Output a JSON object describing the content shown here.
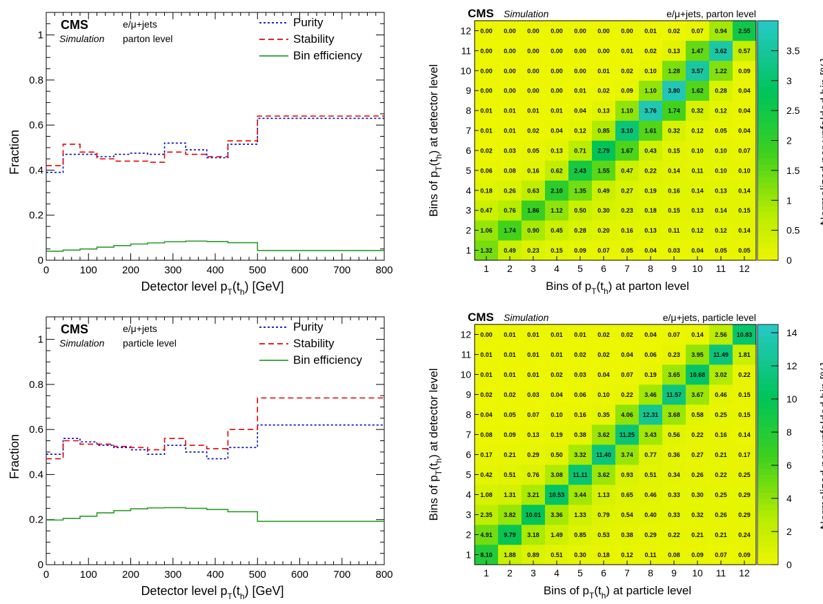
{
  "chart_data": [
    {
      "type": "line",
      "experiment": "CMS",
      "tag": "Simulation",
      "channel": "e/μ+jets",
      "level": "parton level",
      "xlabel_prefix": "Detector level p",
      "xlabel_sub1": "T",
      "xlabel_mid": "(t",
      "xlabel_sub2": "h",
      "xlabel_suffix": ") [GeV]",
      "ylabel": "Fraction",
      "xlim": [
        0,
        800
      ],
      "ylim": [
        0,
        1.1
      ],
      "xticks": [
        "0",
        "100",
        "200",
        "300",
        "400",
        "500",
        "600",
        "700",
        "800"
      ],
      "yticks": [
        "0",
        "0.2",
        "0.4",
        "0.6",
        "0.8",
        "1"
      ],
      "bin_edges": [
        0,
        40,
        80,
        120,
        160,
        200,
        240,
        280,
        330,
        380,
        430,
        500,
        800
      ],
      "legend_position": "top-right",
      "series": [
        {
          "name": "Purity",
          "color": "#0000cc",
          "style": "dotted",
          "values": [
            0.39,
            0.47,
            0.47,
            0.46,
            0.47,
            0.475,
            0.47,
            0.52,
            0.49,
            0.455,
            0.515,
            0.63
          ]
        },
        {
          "name": "Stability",
          "color": "#e00000",
          "style": "dashed",
          "values": [
            0.42,
            0.515,
            0.48,
            0.45,
            0.44,
            0.44,
            0.435,
            0.48,
            0.47,
            0.46,
            0.53,
            0.64
          ]
        },
        {
          "name": "Bin efficiency",
          "color": "#2a9a2a",
          "style": "solid",
          "values": [
            0.04,
            0.045,
            0.05,
            0.058,
            0.065,
            0.072,
            0.077,
            0.082,
            0.085,
            0.083,
            0.078,
            0.043
          ]
        }
      ]
    },
    {
      "type": "heatmap",
      "experiment": "CMS",
      "tag": "Simulation",
      "header": "e/μ+jets, parton level",
      "xlabel_prefix": "Bins of p",
      "xlabel_sub1": "T",
      "xlabel_mid": "(t",
      "xlabel_sub2": "h",
      "xlabel_suffix": ") at parton level",
      "ylabel_prefix": "Bins of p",
      "ylabel_sub1": "T",
      "ylabel_mid": "(t",
      "ylabel_sub2": "h",
      "ylabel_suffix": ") at detector level",
      "zlabel": "Normalized per unfolded bin [%]",
      "zlim": [
        0,
        4.0
      ],
      "zticks": [
        "0",
        "0.5",
        "1",
        "1.5",
        "2",
        "2.5",
        "3",
        "3.5"
      ],
      "zvalues": [
        0,
        0.5,
        1,
        1.5,
        2,
        2.5,
        3,
        3.5
      ],
      "x_bins": [
        "1",
        "2",
        "3",
        "4",
        "5",
        "6",
        "7",
        "8",
        "9",
        "10",
        "11",
        "12"
      ],
      "y_bins": [
        "1",
        "2",
        "3",
        "4",
        "5",
        "6",
        "7",
        "8",
        "9",
        "10",
        "11",
        "12"
      ],
      "cells": [
        [
          "1.32",
          "0.49",
          "0.23",
          "0.15",
          "0.09",
          "0.07",
          "0.05",
          "0.04",
          "0.03",
          "0.04",
          "0.05",
          "0.05"
        ],
        [
          "1.06",
          "1.74",
          "0.90",
          "0.45",
          "0.28",
          "0.20",
          "0.16",
          "0.13",
          "0.11",
          "0.12",
          "0.12",
          "0.14"
        ],
        [
          "0.47",
          "0.76",
          "1.86",
          "1.12",
          "0.50",
          "0.30",
          "0.23",
          "0.18",
          "0.15",
          "0.13",
          "0.14",
          "0.15"
        ],
        [
          "0.18",
          "0.26",
          "0.63",
          "2.10",
          "1.35",
          "0.49",
          "0.27",
          "0.19",
          "0.16",
          "0.14",
          "0.13",
          "0.14"
        ],
        [
          "0.06",
          "0.08",
          "0.16",
          "0.62",
          "2.43",
          "1.55",
          "0.47",
          "0.22",
          "0.14",
          "0.11",
          "0.10",
          "0.10"
        ],
        [
          "0.02",
          "0.03",
          "0.05",
          "0.13",
          "0.71",
          "2.79",
          "1.67",
          "0.43",
          "0.15",
          "0.10",
          "0.10",
          "0.07"
        ],
        [
          "0.01",
          "0.01",
          "0.02",
          "0.04",
          "0.12",
          "0.85",
          "3.10",
          "1.61",
          "0.32",
          "0.12",
          "0.05",
          "0.04"
        ],
        [
          "0.01",
          "0.01",
          "0.01",
          "0.01",
          "0.04",
          "0.13",
          "1.10",
          "3.76",
          "1.74",
          "0.32",
          "0.12",
          "0.04"
        ],
        [
          "0.00",
          "0.00",
          "0.00",
          "0.00",
          "0.01",
          "0.02",
          "0.09",
          "1.10",
          "3.80",
          "1.62",
          "0.28",
          "0.04"
        ],
        [
          "0.00",
          "0.00",
          "0.00",
          "0.00",
          "0.00",
          "0.01",
          "0.02",
          "0.10",
          "1.28",
          "3.57",
          "1.22",
          "0.09"
        ],
        [
          "0.00",
          "0.00",
          "0.00",
          "0.00",
          "0.00",
          "0.00",
          "0.01",
          "0.02",
          "0.13",
          "1.47",
          "3.62",
          "0.57"
        ],
        [
          "0.00",
          "0.00",
          "0.00",
          "0.00",
          "0.00",
          "0.00",
          "0.00",
          "0.01",
          "0.02",
          "0.07",
          "0.94",
          "2.55"
        ]
      ]
    },
    {
      "type": "line",
      "experiment": "CMS",
      "tag": "Simulation",
      "channel": "e/μ+jets",
      "level": "particle level",
      "xlabel_prefix": "Detector level p",
      "xlabel_sub1": "T",
      "xlabel_mid": "(t",
      "xlabel_sub2": "h",
      "xlabel_suffix": ") [GeV]",
      "ylabel": "Fraction",
      "xlim": [
        0,
        800
      ],
      "ylim": [
        0,
        1.1
      ],
      "xticks": [
        "0",
        "100",
        "200",
        "300",
        "400",
        "500",
        "600",
        "700",
        "800"
      ],
      "yticks": [
        "0",
        "0.2",
        "0.4",
        "0.6",
        "0.8",
        "1"
      ],
      "bin_edges": [
        0,
        40,
        80,
        120,
        160,
        200,
        240,
        280,
        330,
        380,
        430,
        500,
        800
      ],
      "legend_position": "top-right",
      "series": [
        {
          "name": "Purity",
          "color": "#0000cc",
          "style": "dotted",
          "values": [
            0.49,
            0.56,
            0.545,
            0.53,
            0.52,
            0.51,
            0.49,
            0.53,
            0.5,
            0.47,
            0.52,
            0.62
          ]
        },
        {
          "name": "Stability",
          "color": "#e00000",
          "style": "dashed",
          "values": [
            0.47,
            0.55,
            0.535,
            0.535,
            0.525,
            0.52,
            0.51,
            0.56,
            0.53,
            0.515,
            0.6,
            0.74
          ]
        },
        {
          "name": "Bin efficiency",
          "color": "#2a9a2a",
          "style": "solid",
          "values": [
            0.198,
            0.205,
            0.215,
            0.23,
            0.24,
            0.248,
            0.252,
            0.253,
            0.25,
            0.245,
            0.235,
            0.192
          ]
        }
      ]
    },
    {
      "type": "heatmap",
      "experiment": "CMS",
      "tag": "Simulation",
      "header": "e/μ+jets, particle level",
      "xlabel_prefix": "Bins of p",
      "xlabel_sub1": "T",
      "xlabel_mid": "(t",
      "xlabel_sub2": "h",
      "xlabel_suffix": ") at particle level",
      "ylabel_prefix": "Bins of p",
      "ylabel_sub1": "T",
      "ylabel_mid": "(t",
      "ylabel_sub2": "h",
      "ylabel_suffix": ") at detector level",
      "zlabel": "Normalized per unfolded bin [%]",
      "zlim": [
        0,
        14.5
      ],
      "zticks": [
        "0",
        "2",
        "4",
        "6",
        "8",
        "10",
        "12",
        "14"
      ],
      "zvalues": [
        0,
        2,
        4,
        6,
        8,
        10,
        12,
        14
      ],
      "x_bins": [
        "1",
        "2",
        "3",
        "4",
        "5",
        "6",
        "7",
        "8",
        "9",
        "10",
        "11",
        "12"
      ],
      "y_bins": [
        "1",
        "2",
        "3",
        "4",
        "5",
        "6",
        "7",
        "8",
        "9",
        "10",
        "11",
        "12"
      ],
      "cells": [
        [
          "8.10",
          "1.88",
          "0.89",
          "0.51",
          "0.30",
          "0.18",
          "0.12",
          "0.11",
          "0.08",
          "0.09",
          "0.07",
          "0.09"
        ],
        [
          "4.91",
          "9.79",
          "3.18",
          "1.49",
          "0.85",
          "0.53",
          "0.38",
          "0.29",
          "0.22",
          "0.21",
          "0.21",
          "0.24"
        ],
        [
          "2.35",
          "3.82",
          "10.01",
          "3.36",
          "1.33",
          "0.79",
          "0.54",
          "0.40",
          "0.33",
          "0.32",
          "0.26",
          "0.29"
        ],
        [
          "1.08",
          "1.31",
          "3.21",
          "10.53",
          "3.44",
          "1.13",
          "0.65",
          "0.46",
          "0.33",
          "0.30",
          "0.25",
          "0.29"
        ],
        [
          "0.42",
          "0.51",
          "0.76",
          "3.08",
          "11.11",
          "3.62",
          "0.93",
          "0.51",
          "0.34",
          "0.26",
          "0.22",
          "0.25"
        ],
        [
          "0.17",
          "0.21",
          "0.29",
          "0.50",
          "3.32",
          "11.40",
          "3.74",
          "0.77",
          "0.36",
          "0.27",
          "0.21",
          "0.17"
        ],
        [
          "0.08",
          "0.09",
          "0.13",
          "0.19",
          "0.38",
          "3.62",
          "11.25",
          "3.43",
          "0.56",
          "0.22",
          "0.16",
          "0.14"
        ],
        [
          "0.04",
          "0.05",
          "0.07",
          "0.10",
          "0.16",
          "0.35",
          "4.06",
          "12.31",
          "3.68",
          "0.58",
          "0.25",
          "0.15"
        ],
        [
          "0.02",
          "0.02",
          "0.03",
          "0.04",
          "0.06",
          "0.10",
          "0.22",
          "3.46",
          "11.57",
          "3.67",
          "0.46",
          "0.15"
        ],
        [
          "0.01",
          "0.01",
          "0.01",
          "0.02",
          "0.03",
          "0.04",
          "0.07",
          "0.19",
          "3.65",
          "10.68",
          "3.02",
          "0.22"
        ],
        [
          "0.01",
          "0.01",
          "0.01",
          "0.01",
          "0.02",
          "0.02",
          "0.04",
          "0.06",
          "0.23",
          "3.95",
          "11.49",
          "1.81"
        ],
        [
          "0.00",
          "0.01",
          "0.01",
          "0.01",
          "0.01",
          "0.02",
          "0.02",
          "0.04",
          "0.07",
          "0.14",
          "2.56",
          "10.83"
        ]
      ]
    }
  ]
}
